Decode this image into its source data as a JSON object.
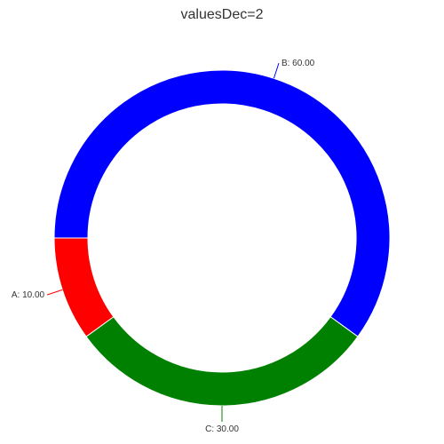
{
  "chart_data": {
    "type": "pie",
    "variant": "donut",
    "title": "valuesDec=2",
    "slices": [
      {
        "name": "A",
        "value": 10,
        "label": "A: 10.00",
        "color": "#ff0000"
      },
      {
        "name": "B",
        "value": 60,
        "label": "B: 60.00",
        "color": "#0000ff"
      },
      {
        "name": "C",
        "value": 30,
        "label": "C: 30.00",
        "color": "#008000"
      }
    ],
    "legend": "none"
  }
}
